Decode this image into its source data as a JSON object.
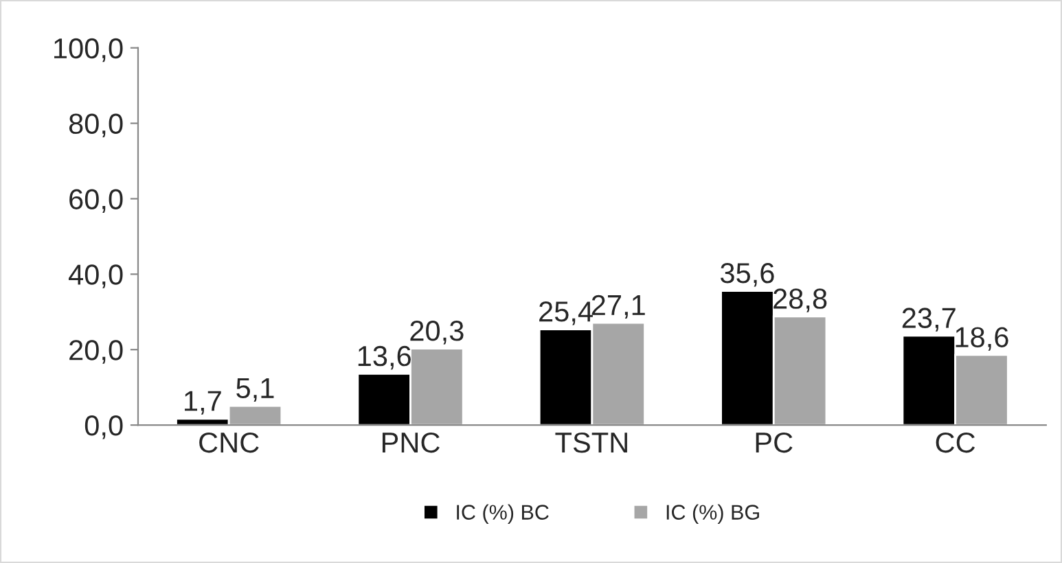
{
  "chart_data": {
    "type": "bar",
    "categories": [
      "CNC",
      "PNC",
      "TSTN",
      "PC",
      "CC"
    ],
    "series": [
      {
        "name": "IC (%) BC",
        "color": "#000000",
        "values": [
          1.7,
          13.6,
          25.4,
          35.6,
          23.7
        ],
        "value_labels": [
          "1,7",
          "13,6",
          "25,4",
          "35,6",
          "23,7"
        ]
      },
      {
        "name": "IC (%) BG",
        "color": "#a6a6a6",
        "values": [
          5.1,
          20.3,
          27.1,
          28.8,
          18.6
        ],
        "value_labels": [
          "5,1",
          "20,3",
          "27,1",
          "28,8",
          "18,6"
        ]
      }
    ],
    "ylim": [
      0,
      100
    ],
    "yticks": [
      {
        "value": 0,
        "label": "0,0"
      },
      {
        "value": 20,
        "label": "20,0"
      },
      {
        "value": 40,
        "label": "40,0"
      },
      {
        "value": 60,
        "label": "60,0"
      },
      {
        "value": 80,
        "label": "80,0"
      },
      {
        "value": 100,
        "label": "100,0"
      }
    ],
    "grid": false,
    "legend": "bottom"
  }
}
